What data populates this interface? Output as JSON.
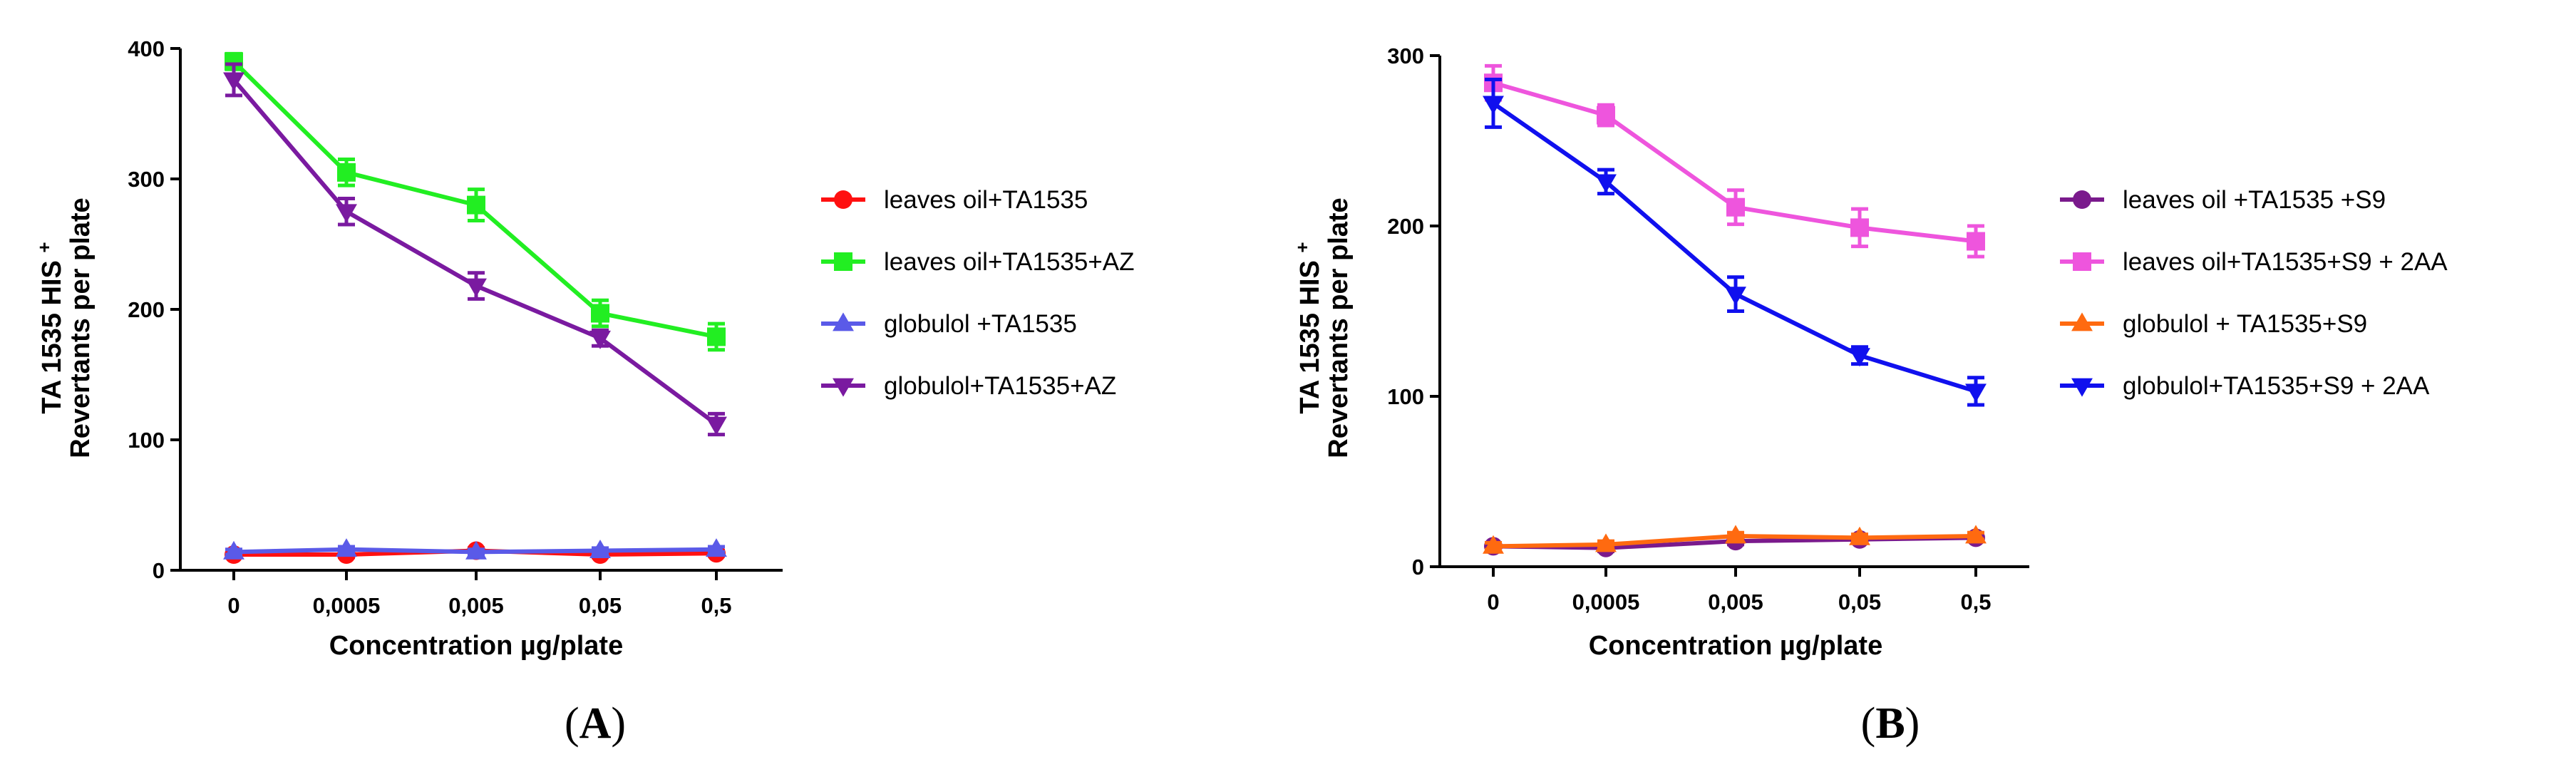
{
  "chart_data": [
    {
      "type": "line",
      "panel_label": "A",
      "categories": [
        "0",
        "0,0005",
        "0,005",
        "0,05",
        "0,5"
      ],
      "xlabel": "Concentration µg/plate",
      "ylabel_line1": "TA 1535 HIS",
      "ylabel_sup": "+",
      "ylabel_line2": "Revertants per plate",
      "ylim": [
        0,
        400
      ],
      "yticks": [
        "0",
        "100",
        "200",
        "300",
        "400"
      ],
      "series": [
        {
          "name": "leaves oil+TA1535",
          "color": "#ff1010",
          "marker": "circle",
          "values": [
            12,
            12,
            15,
            12,
            13
          ],
          "errors": [
            2,
            2,
            2,
            2,
            2
          ]
        },
        {
          "name": "leaves oil+TA1535+AZ",
          "color": "#22ee22",
          "marker": "square",
          "values": [
            390,
            305,
            280,
            197,
            179
          ],
          "errors": [
            6,
            10,
            12,
            10,
            10
          ]
        },
        {
          "name": "globulol +TA1535",
          "color": "#5a5ae8",
          "marker": "triangle-up",
          "values": [
            14,
            16,
            14,
            15,
            16
          ],
          "errors": [
            2,
            2,
            2,
            2,
            2
          ]
        },
        {
          "name": "globulol+TA1535+AZ",
          "color": "#7a1aa0",
          "marker": "triangle-down",
          "values": [
            376,
            275,
            218,
            178,
            112
          ],
          "errors": [
            12,
            10,
            10,
            6,
            8
          ]
        }
      ]
    },
    {
      "type": "line",
      "panel_label": "B",
      "categories": [
        "0",
        "0,0005",
        "0,005",
        "0,05",
        "0,5"
      ],
      "xlabel": "Concentration µg/plate",
      "ylabel_line1": "TA 1535 HIS",
      "ylabel_sup": "+",
      "ylabel_line2": "Revertants per plate",
      "ylim": [
        0,
        300
      ],
      "yticks": [
        "0",
        "100",
        "200",
        "300"
      ],
      "series": [
        {
          "name": "leaves oil +TA1535 +S9",
          "color": "#7a1a8c",
          "marker": "circle",
          "values": [
            12,
            11,
            15,
            16,
            17
          ],
          "errors": [
            2,
            2,
            2,
            2,
            2
          ]
        },
        {
          "name": "leaves oil+TA1535+S9 + 2AA",
          "color": "#ee55dd",
          "marker": "square",
          "values": [
            284,
            265,
            211,
            199,
            191
          ],
          "errors": [
            10,
            6,
            10,
            11,
            9
          ]
        },
        {
          "name": "globulol + TA1535+S9",
          "color": "#ff6a10",
          "marker": "triangle-up",
          "values": [
            12,
            13,
            18,
            17,
            18
          ],
          "errors": [
            2,
            2,
            2,
            2,
            2
          ]
        },
        {
          "name": "globulol+TA1535+S9 + 2AA",
          "color": "#1010ee",
          "marker": "triangle-down",
          "values": [
            272,
            226,
            160,
            124,
            103
          ],
          "errors": [
            14,
            7,
            10,
            5,
            8
          ]
        }
      ]
    }
  ]
}
